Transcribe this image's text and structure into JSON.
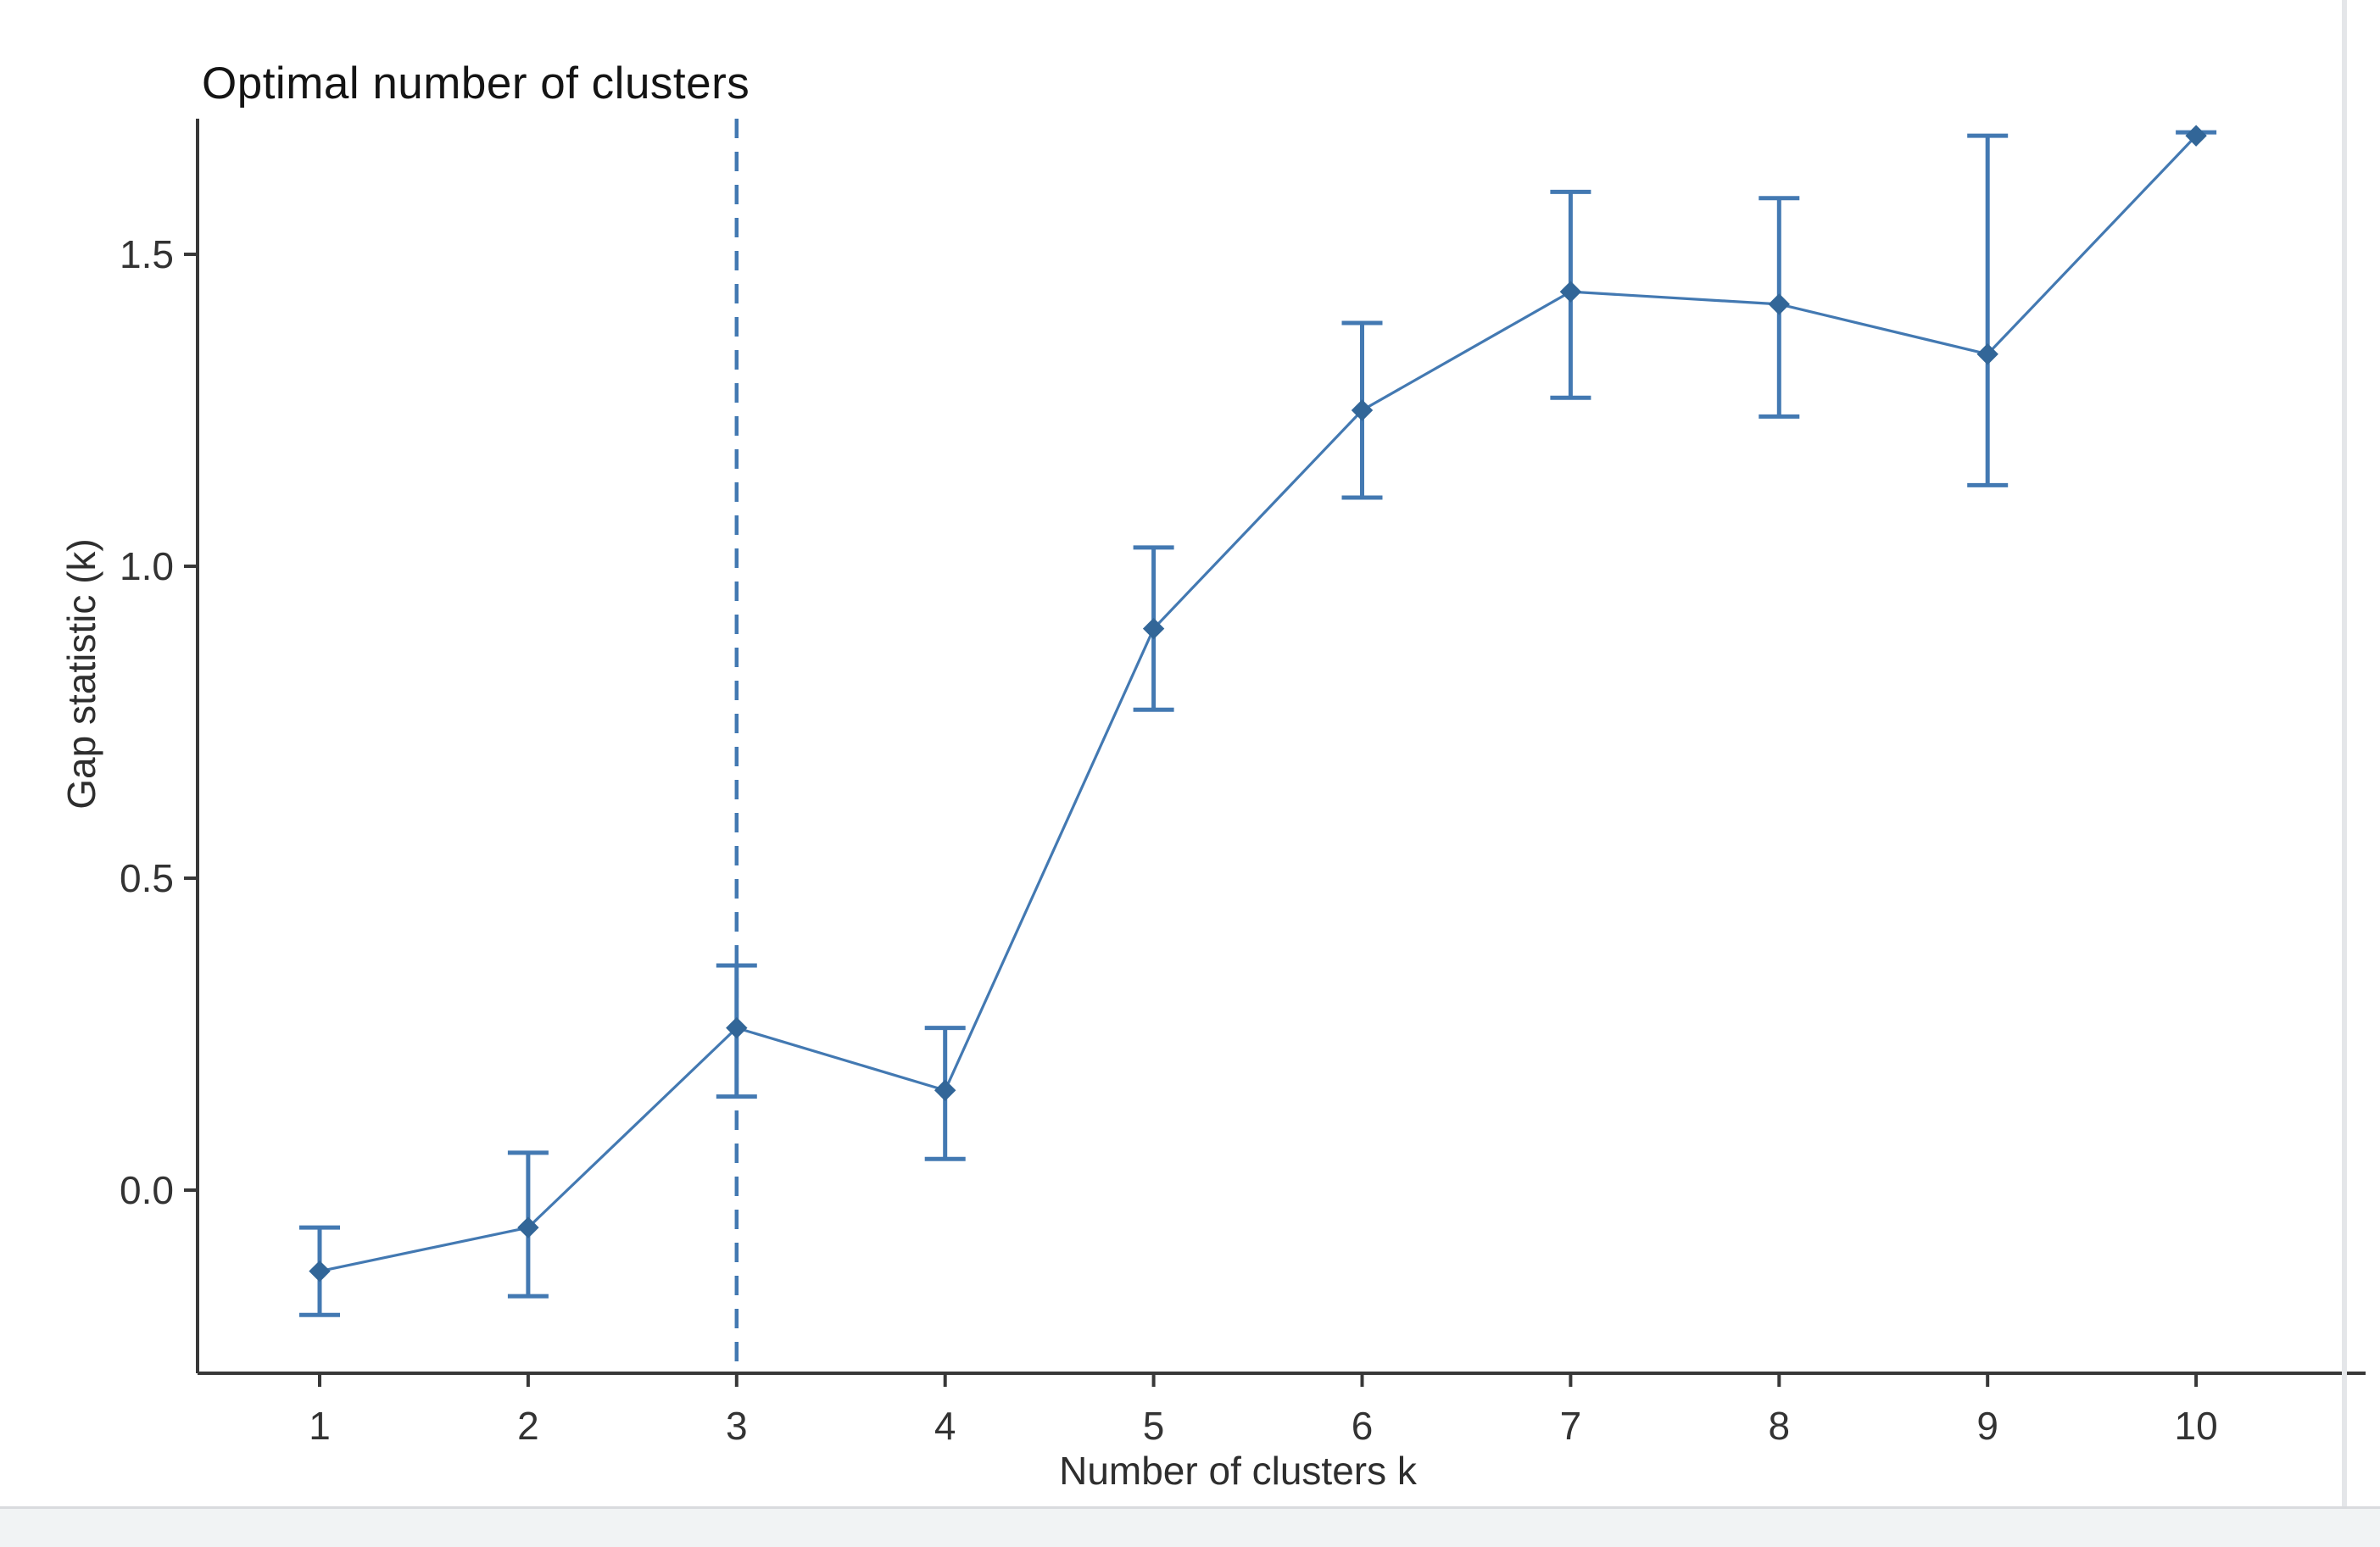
{
  "chart_data": {
    "type": "line",
    "title": "Optimal number of clusters",
    "xlabel": "Number of clusters k",
    "ylabel": "Gap statistic (k)",
    "x": [
      1,
      2,
      3,
      4,
      5,
      6,
      7,
      8,
      9,
      10
    ],
    "series": [
      {
        "name": "Gap statistic",
        "values": [
          -0.13,
          -0.06,
          0.26,
          0.16,
          0.9,
          1.25,
          1.44,
          1.42,
          1.34,
          1.69
        ],
        "error_lower": [
          -0.2,
          -0.17,
          0.15,
          0.05,
          0.77,
          1.11,
          1.27,
          1.24,
          1.13,
          null
        ],
        "error_upper": [
          -0.06,
          0.06,
          0.36,
          0.26,
          1.03,
          1.39,
          1.6,
          1.59,
          1.69,
          1.69
        ]
      }
    ],
    "optimal_k": 3,
    "optimal_k_line": "dashed-vertical",
    "xticks": {
      "values": [
        1,
        2,
        3,
        4,
        5,
        6,
        7,
        8,
        9,
        10
      ],
      "labels": [
        "1",
        "2",
        "3",
        "4",
        "5",
        "6",
        "7",
        "8",
        "9",
        "10"
      ]
    },
    "yticks": {
      "values": [
        0.0,
        0.5,
        1.0,
        1.5
      ],
      "labels": [
        "0.0",
        "0.5",
        "1.0",
        "1.5"
      ]
    },
    "ylim": [
      -0.29,
      1.72
    ],
    "grid": false,
    "legend": "none",
    "marker": "diamond",
    "colors": {
      "line": "#4379b2",
      "marker": "#326698",
      "errorbar": "#4379b2",
      "vline": "#4379b2",
      "axis": "#383838",
      "tick_text": "#333333",
      "title_text": "#141414",
      "page_band": "#f1f3f4"
    }
  }
}
